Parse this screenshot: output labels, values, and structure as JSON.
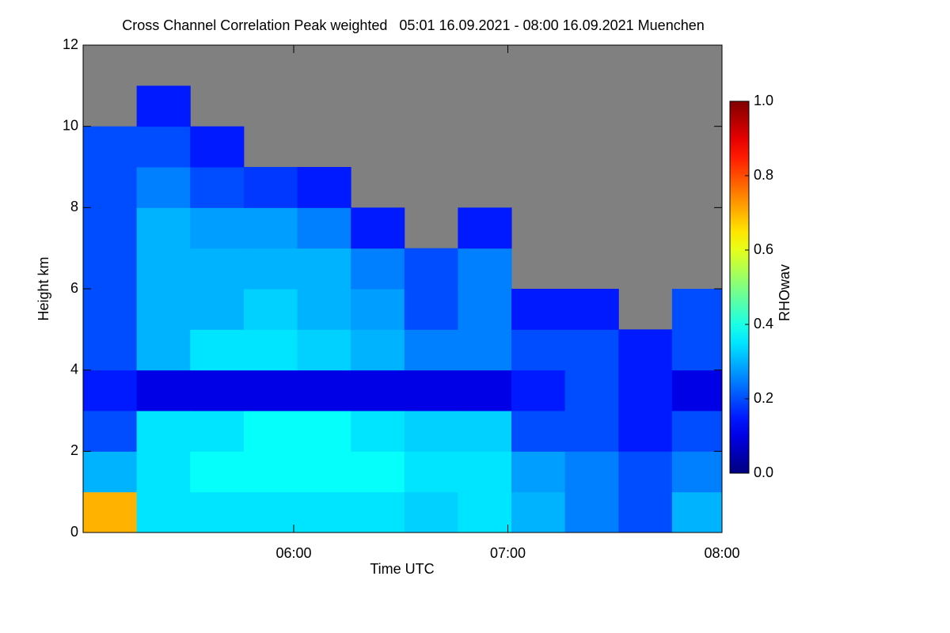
{
  "chart_data": {
    "type": "heatmap",
    "title": "Cross Channel Correlation Peak weighted   05:01 16.09.2021 - 08:00 16.09.2021 Muenchen",
    "x_label": "Time UTC",
    "y_label": "Height km",
    "colorbar_label": "RHOwav",
    "xlim": [
      301,
      480
    ],
    "xticks": [
      {
        "value": 360,
        "label": "06:00"
      },
      {
        "value": 420,
        "label": "07:00"
      },
      {
        "value": 480,
        "label": "08:00"
      }
    ],
    "ylim": [
      0,
      12
    ],
    "yticks": [
      0,
      2,
      4,
      6,
      8,
      10,
      12
    ],
    "clim": [
      0,
      1
    ],
    "cticks": [
      {
        "value": 0,
        "label": "0.0"
      },
      {
        "value": 0.2,
        "label": "0.2"
      },
      {
        "value": 0.4,
        "label": "0.4"
      },
      {
        "value": 0.6,
        "label": "0.6"
      },
      {
        "value": 0.8,
        "label": "0.8"
      },
      {
        "value": 1,
        "label": "1.0"
      }
    ],
    "colormap": "jet",
    "missing_color": "#808080",
    "x": [
      308.5,
      323.5,
      338.5,
      353.5,
      368.5,
      383.5,
      398.5,
      413.5,
      428.5,
      443.5,
      458.5,
      473.5
    ],
    "y": [
      0.5,
      1.5,
      2.5,
      3.5,
      4.5,
      5.5,
      6.5,
      7.5,
      8.5,
      9.5,
      10.5,
      11.5
    ],
    "values": [
      [
        0.7,
        0.3,
        0.2,
        0.15,
        0.2,
        0.2,
        0.2,
        0.2,
        0.2,
        0.2,
        null,
        null
      ],
      [
        0.35,
        0.35,
        0.35,
        0.1,
        0.3,
        0.3,
        0.3,
        0.3,
        0.25,
        0.2,
        0.15,
        null
      ],
      [
        0.35,
        0.38,
        0.35,
        0.1,
        0.35,
        0.3,
        0.3,
        0.28,
        0.2,
        0.15,
        null,
        null
      ],
      [
        0.35,
        0.38,
        0.38,
        0.1,
        0.35,
        0.33,
        0.3,
        0.28,
        0.18,
        null,
        null,
        null
      ],
      [
        0.35,
        0.38,
        0.38,
        0.1,
        0.33,
        0.3,
        0.3,
        0.25,
        0.15,
        null,
        null,
        null
      ],
      [
        0.35,
        0.38,
        0.35,
        0.1,
        0.3,
        0.28,
        0.25,
        0.15,
        null,
        null,
        null,
        null
      ],
      [
        0.33,
        0.35,
        0.33,
        0.1,
        0.25,
        0.2,
        0.2,
        null,
        null,
        null,
        null,
        null
      ],
      [
        0.35,
        0.35,
        0.33,
        0.1,
        0.25,
        0.25,
        0.25,
        0.15,
        null,
        null,
        null,
        null
      ],
      [
        0.3,
        0.28,
        0.2,
        0.15,
        0.2,
        0.15,
        null,
        null,
        null,
        null,
        null,
        null
      ],
      [
        0.25,
        0.25,
        0.2,
        0.2,
        0.2,
        0.15,
        null,
        null,
        null,
        null,
        null,
        null
      ],
      [
        0.2,
        0.2,
        0.15,
        0.15,
        0.15,
        null,
        null,
        null,
        null,
        null,
        null,
        null
      ],
      [
        0.3,
        0.25,
        0.2,
        0.1,
        0.2,
        0.2,
        null,
        null,
        null,
        null,
        null,
        null
      ]
    ]
  }
}
